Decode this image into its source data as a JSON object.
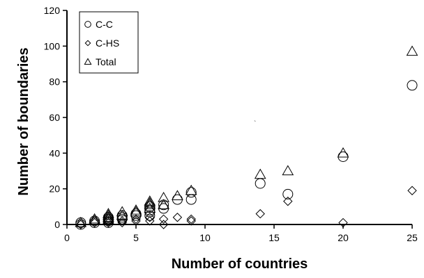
{
  "chart_data": {
    "type": "scatter",
    "xlabel": "Number of countries",
    "ylabel": "Number of boundaries",
    "xlim": [
      0,
      25
    ],
    "ylim": [
      0,
      120
    ],
    "xticks": [
      "0",
      "5",
      "10",
      "15",
      "20",
      "25"
    ],
    "yticks": [
      "0",
      "20",
      "40",
      "60",
      "80",
      "100",
      "120"
    ],
    "grid": false,
    "legend_position": "top-left",
    "series": [
      {
        "name": "C-C",
        "marker": "circle",
        "points": [
          [
            1,
            0
          ],
          [
            1,
            1
          ],
          [
            2,
            1
          ],
          [
            2,
            2
          ],
          [
            3,
            1
          ],
          [
            3,
            2
          ],
          [
            3,
            3
          ],
          [
            3,
            4
          ],
          [
            4,
            3
          ],
          [
            4,
            4
          ],
          [
            4,
            5
          ],
          [
            5,
            5
          ],
          [
            5,
            6
          ],
          [
            6,
            5
          ],
          [
            6,
            7
          ],
          [
            6,
            8
          ],
          [
            6,
            10
          ],
          [
            7,
            9
          ],
          [
            7,
            11
          ],
          [
            8,
            14
          ],
          [
            9,
            14
          ],
          [
            9,
            18
          ],
          [
            14,
            23
          ],
          [
            16,
            17
          ],
          [
            20,
            38
          ],
          [
            25,
            78
          ]
        ]
      },
      {
        "name": "C-HS",
        "marker": "diamond",
        "points": [
          [
            1,
            0
          ],
          [
            2,
            1
          ],
          [
            3,
            1
          ],
          [
            3,
            2
          ],
          [
            4,
            1
          ],
          [
            4,
            2
          ],
          [
            5,
            2
          ],
          [
            5,
            3
          ],
          [
            6,
            2
          ],
          [
            6,
            4
          ],
          [
            7,
            0
          ],
          [
            7,
            3
          ],
          [
            8,
            4
          ],
          [
            9,
            2
          ],
          [
            9,
            3
          ],
          [
            14,
            6
          ],
          [
            16,
            13
          ],
          [
            20,
            1
          ],
          [
            25,
            19
          ]
        ]
      },
      {
        "name": "Total",
        "marker": "triangle",
        "points": [
          [
            1,
            1
          ],
          [
            2,
            2
          ],
          [
            2,
            3
          ],
          [
            3,
            3
          ],
          [
            3,
            4
          ],
          [
            3,
            5
          ],
          [
            3,
            6
          ],
          [
            4,
            5
          ],
          [
            4,
            7
          ],
          [
            5,
            7
          ],
          [
            5,
            8
          ],
          [
            6,
            9
          ],
          [
            6,
            11
          ],
          [
            6,
            12
          ],
          [
            6,
            13
          ],
          [
            7,
            11
          ],
          [
            7,
            15
          ],
          [
            8,
            16
          ],
          [
            9,
            19
          ],
          [
            14,
            28
          ],
          [
            16,
            30
          ],
          [
            20,
            40
          ],
          [
            25,
            97
          ]
        ]
      }
    ]
  }
}
